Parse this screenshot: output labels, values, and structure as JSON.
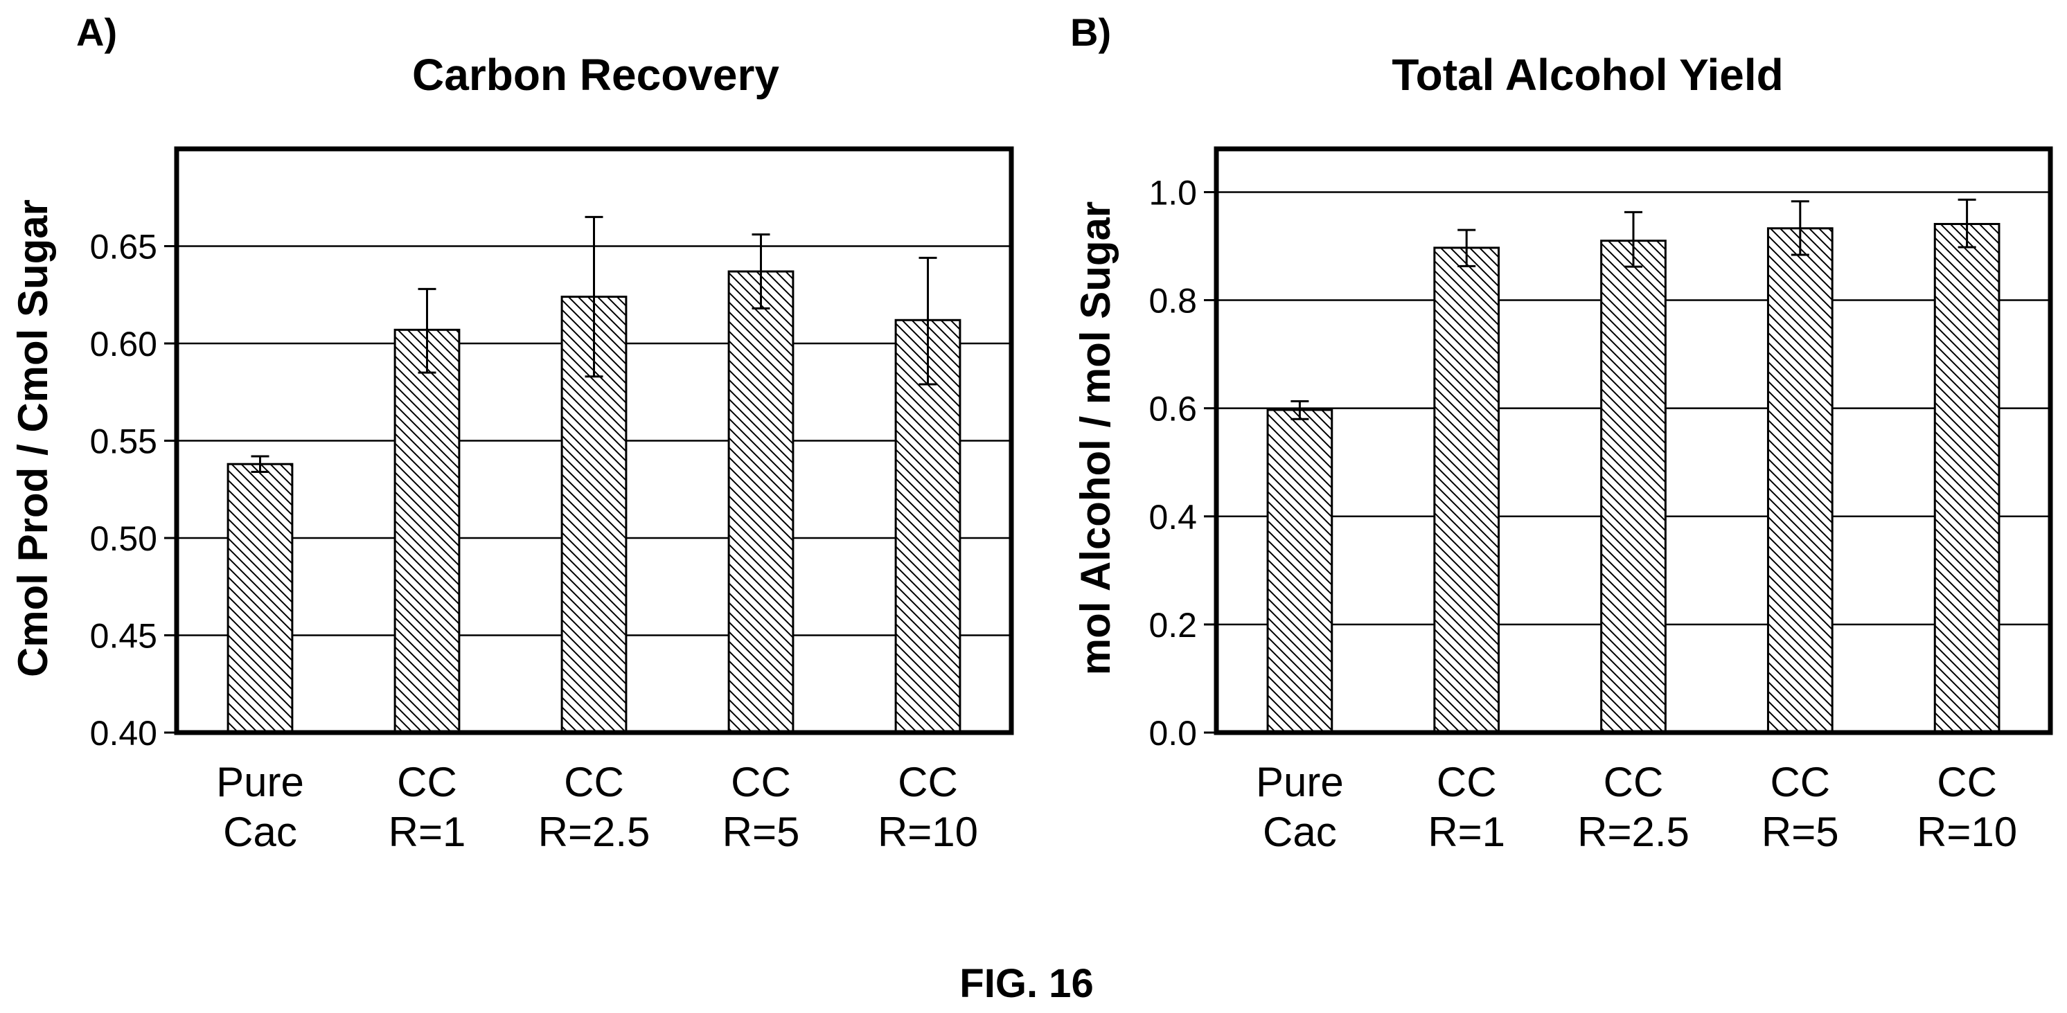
{
  "figure": {
    "caption": "FIG. 16"
  },
  "chart_data": [
    {
      "type": "bar",
      "panel": "A)",
      "title": "Carbon Recovery",
      "xlabel": "",
      "ylabel": "Cmol Prod / Cmol Sugar",
      "categories": [
        [
          "Pure",
          "Cac"
        ],
        [
          "CC",
          "R=1"
        ],
        [
          "CC",
          "R=2.5"
        ],
        [
          "CC",
          "R=5"
        ],
        [
          "CC",
          "R=10"
        ]
      ],
      "values": [
        0.538,
        0.607,
        0.624,
        0.637,
        0.612
      ],
      "error_bars": [
        [
          0.534,
          0.542
        ],
        [
          0.585,
          0.628
        ],
        [
          0.583,
          0.665
        ],
        [
          0.618,
          0.656
        ],
        [
          0.579,
          0.644
        ]
      ],
      "ylim": [
        0.4,
        0.7
      ],
      "yticks": [
        0.4,
        0.45,
        0.5,
        0.55,
        0.6,
        0.65
      ],
      "ytick_labels": [
        "0.40",
        "0.45",
        "0.50",
        "0.55",
        "0.60",
        "0.65"
      ],
      "grid": "horizontal",
      "bar_pattern": "diagonal-hatch"
    },
    {
      "type": "bar",
      "panel": "B)",
      "title": "Total Alcohol Yield",
      "xlabel": "",
      "ylabel": "mol Alcohol / mol Sugar",
      "categories": [
        [
          "Pure",
          "Cac"
        ],
        [
          "CC",
          "R=1"
        ],
        [
          "CC",
          "R=2.5"
        ],
        [
          "CC",
          "R=5"
        ],
        [
          "CC",
          "R=10"
        ]
      ],
      "values": [
        0.597,
        0.897,
        0.91,
        0.933,
        0.941
      ],
      "error_bars": [
        [
          0.58,
          0.613
        ],
        [
          0.863,
          0.93
        ],
        [
          0.862,
          0.963
        ],
        [
          0.884,
          0.983
        ],
        [
          0.898,
          0.986
        ]
      ],
      "ylim": [
        0.0,
        1.08
      ],
      "yticks": [
        0.0,
        0.2,
        0.4,
        0.6,
        0.8,
        1.0
      ],
      "ytick_labels": [
        "0.0",
        "0.2",
        "0.4",
        "0.6",
        "0.8",
        "1.0"
      ],
      "grid": "horizontal",
      "bar_pattern": "diagonal-hatch"
    }
  ]
}
